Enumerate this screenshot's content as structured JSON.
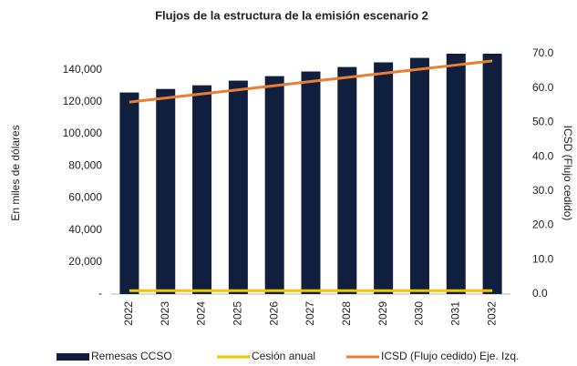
{
  "chart_data": {
    "type": "bar_line",
    "title": "Flujos de la estructura de la emisión escenario 2",
    "ylabel": "En miles de dólares",
    "y2label": "ICSD (Flujo cedido)",
    "categories": [
      "2022",
      "2023",
      "2024",
      "2025",
      "2026",
      "2027",
      "2028",
      "2029",
      "2030",
      "2031",
      "2032"
    ],
    "series": [
      {
        "name": "Remesas  CCSO",
        "type": "bar",
        "color": "#0f1f3d",
        "values": [
          125800,
          128000,
          130300,
          133200,
          136000,
          138900,
          141700,
          144600,
          147400,
          150000,
          150000
        ]
      },
      {
        "name": "Cesión anual",
        "type": "line",
        "axis": "y2",
        "color": "#f2c500",
        "values": [
          1.0,
          1.0,
          1.0,
          1.0,
          1.0,
          1.0,
          1.0,
          1.0,
          1.0,
          1.0,
          1.0
        ]
      },
      {
        "name": "ICSD (Flujo cedido) Eje. Izq.",
        "type": "line",
        "axis": "y2",
        "color": "#ed7d31",
        "values": [
          55.9,
          57.1,
          58.3,
          59.5,
          60.7,
          61.9,
          63.1,
          64.3,
          65.5,
          66.7,
          67.9
        ]
      }
    ],
    "ylim": [
      0,
      150000
    ],
    "yticks": [
      {
        "value": 0,
        "label": "-"
      },
      {
        "value": 20000,
        "label": "20,000"
      },
      {
        "value": 40000,
        "label": "40,000"
      },
      {
        "value": 60000,
        "label": "60,000"
      },
      {
        "value": 80000,
        "label": "80,000"
      },
      {
        "value": 100000,
        "label": "100,000"
      },
      {
        "value": 120000,
        "label": "120,000"
      },
      {
        "value": 140000,
        "label": "140,000"
      }
    ],
    "y2lim": [
      0,
      70
    ],
    "y2ticks": [
      {
        "value": 0,
        "label": "0.0"
      },
      {
        "value": 10,
        "label": "10.0"
      },
      {
        "value": 20,
        "label": "20.0"
      },
      {
        "value": 30,
        "label": "30.0"
      },
      {
        "value": 40,
        "label": "40.0"
      },
      {
        "value": 50,
        "label": "50.0"
      },
      {
        "value": 60,
        "label": "60.0"
      },
      {
        "value": 70,
        "label": "70.0"
      }
    ],
    "legend": "bottom"
  }
}
